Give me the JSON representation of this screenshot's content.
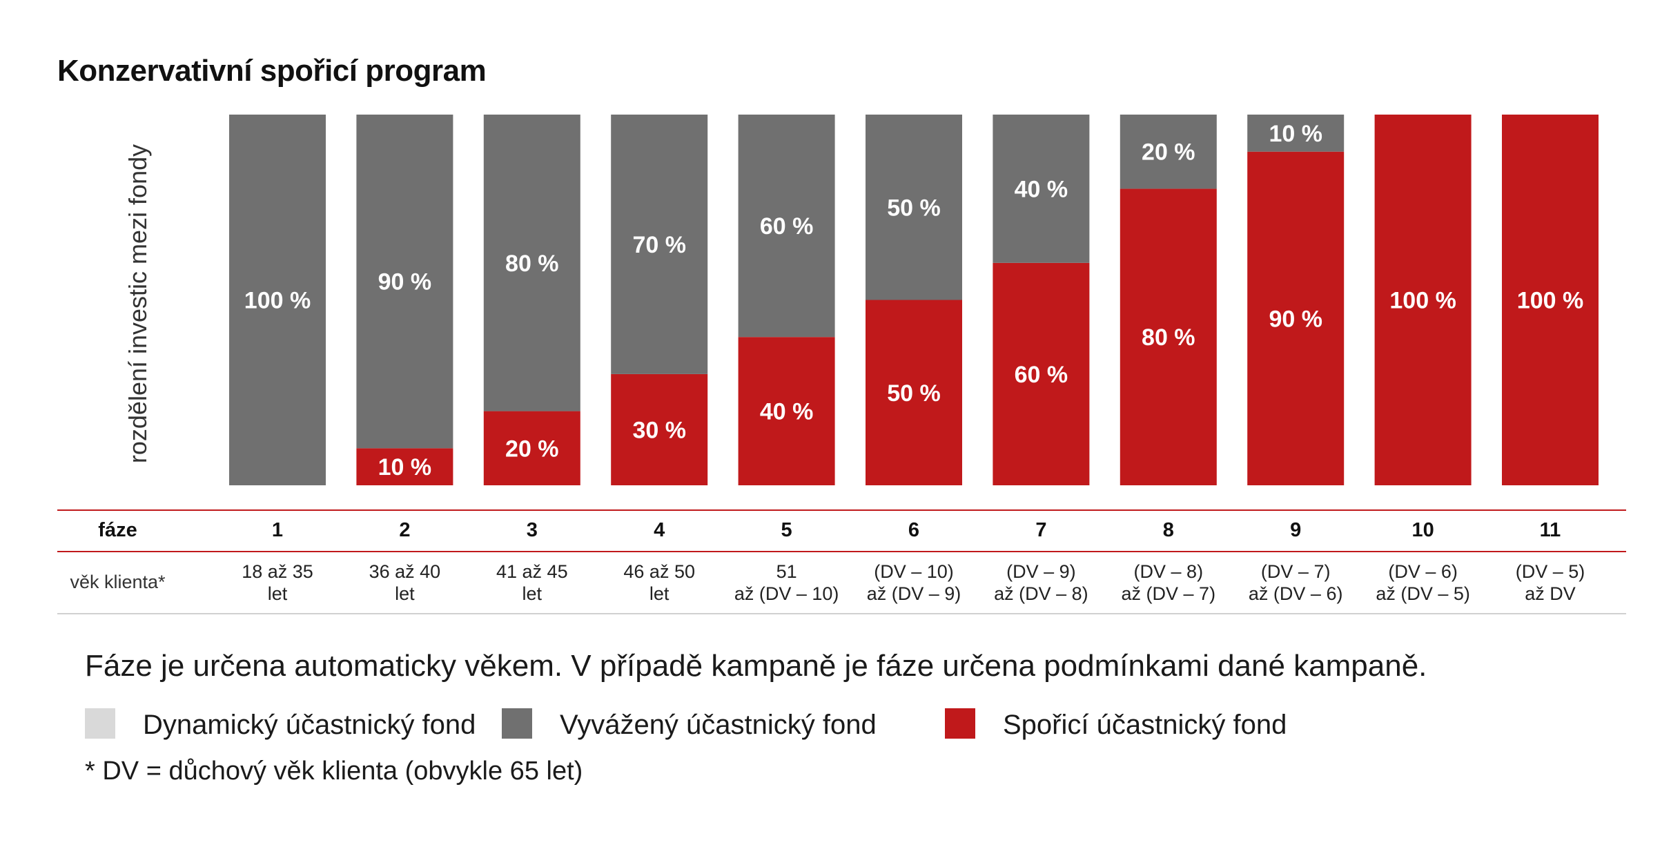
{
  "title": "Konzervativní spořicí program",
  "y_axis_label": "rozdělení investic mezi fondy",
  "colors": {
    "dynamic": "#d9d9d9",
    "balanced": "#707070",
    "saving": "#c0191b",
    "text_on_bar": "#ffffff"
  },
  "chart_data": {
    "type": "bar",
    "stacked": true,
    "title": "Konzervativní spořicí program",
    "ylabel": "rozdělení investic mezi fondy",
    "ylim": [
      0,
      100
    ],
    "categories": [
      "1",
      "2",
      "3",
      "4",
      "5",
      "6",
      "7",
      "8",
      "9",
      "10",
      "11"
    ],
    "series": [
      {
        "name": "Spořicí účastnický fond",
        "color": "#c0191b",
        "values": [
          0,
          10,
          20,
          30,
          40,
          50,
          60,
          80,
          90,
          100,
          100
        ]
      },
      {
        "name": "Vyvážený účastnický fond",
        "color": "#707070",
        "values": [
          100,
          90,
          80,
          70,
          60,
          50,
          40,
          20,
          10,
          0,
          0
        ]
      }
    ]
  },
  "table": {
    "phase_label": "fáze",
    "age_label": "věk klienta*",
    "phases": [
      "1",
      "2",
      "3",
      "4",
      "5",
      "6",
      "7",
      "8",
      "9",
      "10",
      "11"
    ],
    "ages": [
      [
        "18 až 35",
        "let"
      ],
      [
        "36 až 40",
        "let"
      ],
      [
        "41 až 45",
        "let"
      ],
      [
        "46 až 50",
        "let"
      ],
      [
        "51",
        "až (DV – 10)"
      ],
      [
        "(DV – 10)",
        "až (DV – 9)"
      ],
      [
        "(DV – 9)",
        "až (DV – 8)"
      ],
      [
        "(DV – 8)",
        "až (DV – 7)"
      ],
      [
        "(DV – 7)",
        "až (DV – 6)"
      ],
      [
        "(DV – 6)",
        "až (DV – 5)"
      ],
      [
        "(DV – 5)",
        "až DV"
      ]
    ]
  },
  "note": "Fáze je určena automaticky věkem. V případě kampaně je fáze určena podmínkami dané kampaně.",
  "legend": [
    {
      "label": "Dynamický účastnický fond",
      "color": "#d9d9d9"
    },
    {
      "label": "Vyvážený účastnický fond",
      "color": "#707070"
    },
    {
      "label": "Spořicí účastnický fond",
      "color": "#c0191b"
    }
  ],
  "footnote": "* DV = důchový věk klienta (obvykle 65 let)"
}
